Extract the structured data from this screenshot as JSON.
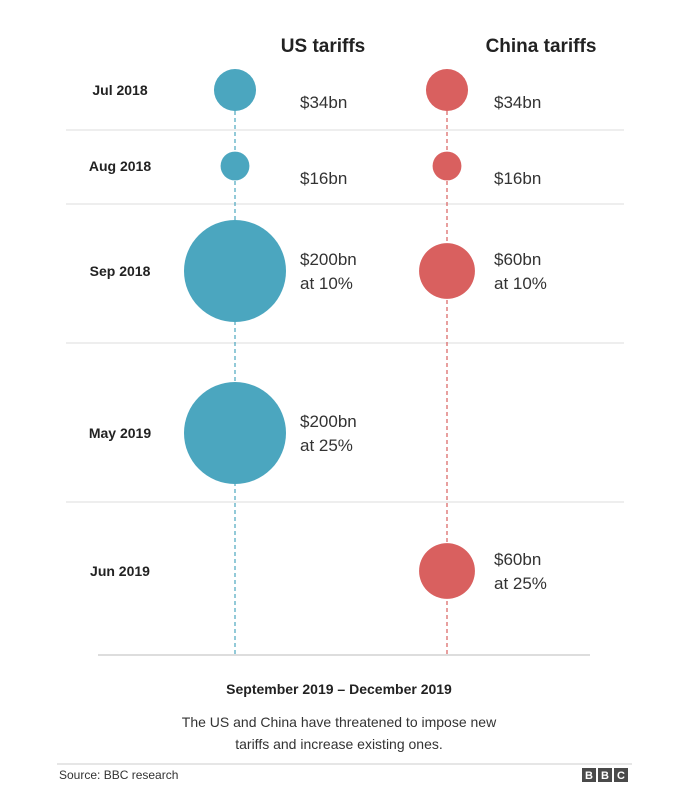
{
  "chart_data": {
    "type": "bubble-timeline",
    "columns": [
      {
        "key": "us",
        "name": "US tariffs",
        "color": "#4ba6bf"
      },
      {
        "key": "china",
        "name": "China tariffs",
        "color": "#d9605f"
      }
    ],
    "rows": [
      {
        "date": "Jul 2018",
        "us": {
          "value": 34,
          "label": [
            "$34bn"
          ]
        },
        "china": {
          "value": 34,
          "label": [
            "$34bn"
          ]
        }
      },
      {
        "date": "Aug 2018",
        "us": {
          "value": 16,
          "label": [
            "$16bn"
          ]
        },
        "china": {
          "value": 16,
          "label": [
            "$16bn"
          ]
        }
      },
      {
        "date": "Sep 2018",
        "us": {
          "value": 200,
          "label": [
            "$200bn",
            "at 10%"
          ]
        },
        "china": {
          "value": 60,
          "label": [
            "$60bn",
            "at 10%"
          ]
        }
      },
      {
        "date": "May 2019",
        "us": {
          "value": 200,
          "label": [
            "$200bn",
            "at 25%"
          ]
        },
        "china": null
      },
      {
        "date": "Jun 2019",
        "us": null,
        "china": {
          "value": 60,
          "label": [
            "$60bn",
            "at 25%"
          ]
        }
      }
    ],
    "footer_period": "September 2019 – December 2019",
    "footer_note": [
      "The US and China have threatened to impose new",
      "tariffs and increase existing ones."
    ]
  },
  "source": "Source: BBC research",
  "logo": {
    "letters": [
      "B",
      "B",
      "C"
    ]
  }
}
